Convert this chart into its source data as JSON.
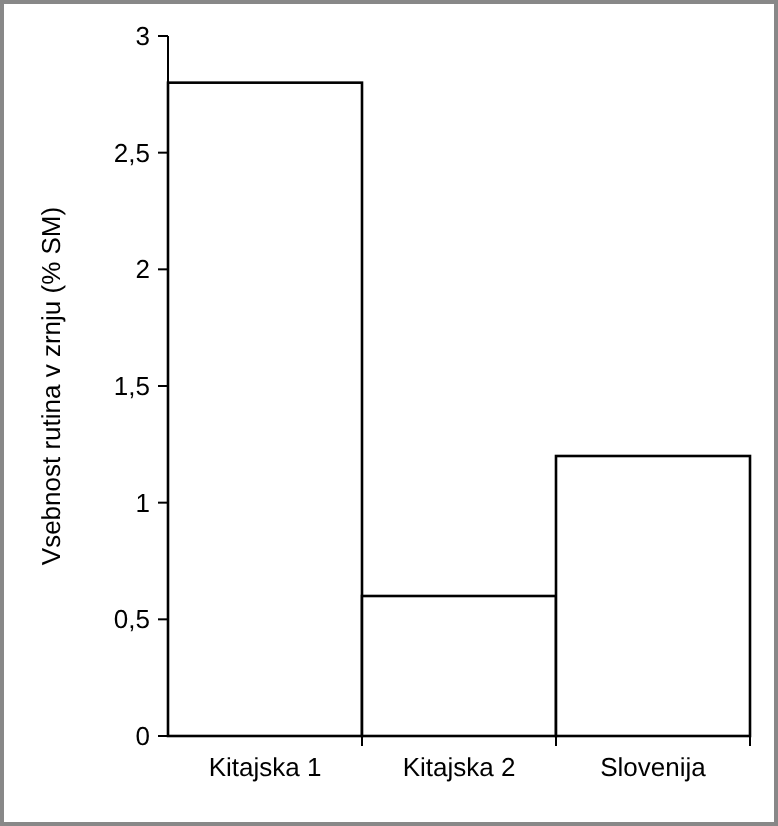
{
  "chart_data": {
    "type": "bar",
    "ylabel": "Vsebnost rutina v zrnju (% SM)",
    "categories": [
      "Kitajska 1",
      "Kitajska 2",
      "Slovenija"
    ],
    "values": [
      2.8,
      0.6,
      1.2
    ],
    "color": "#ffffff",
    "ylim": [
      0,
      3
    ],
    "yticks": [
      0,
      {
        "value": 0.5,
        "label": "0,5"
      },
      1,
      {
        "value": 1.5,
        "label": "1,5"
      },
      2,
      {
        "value": 2.5,
        "label": "2,5"
      },
      3
    ],
    "grid": false
  }
}
